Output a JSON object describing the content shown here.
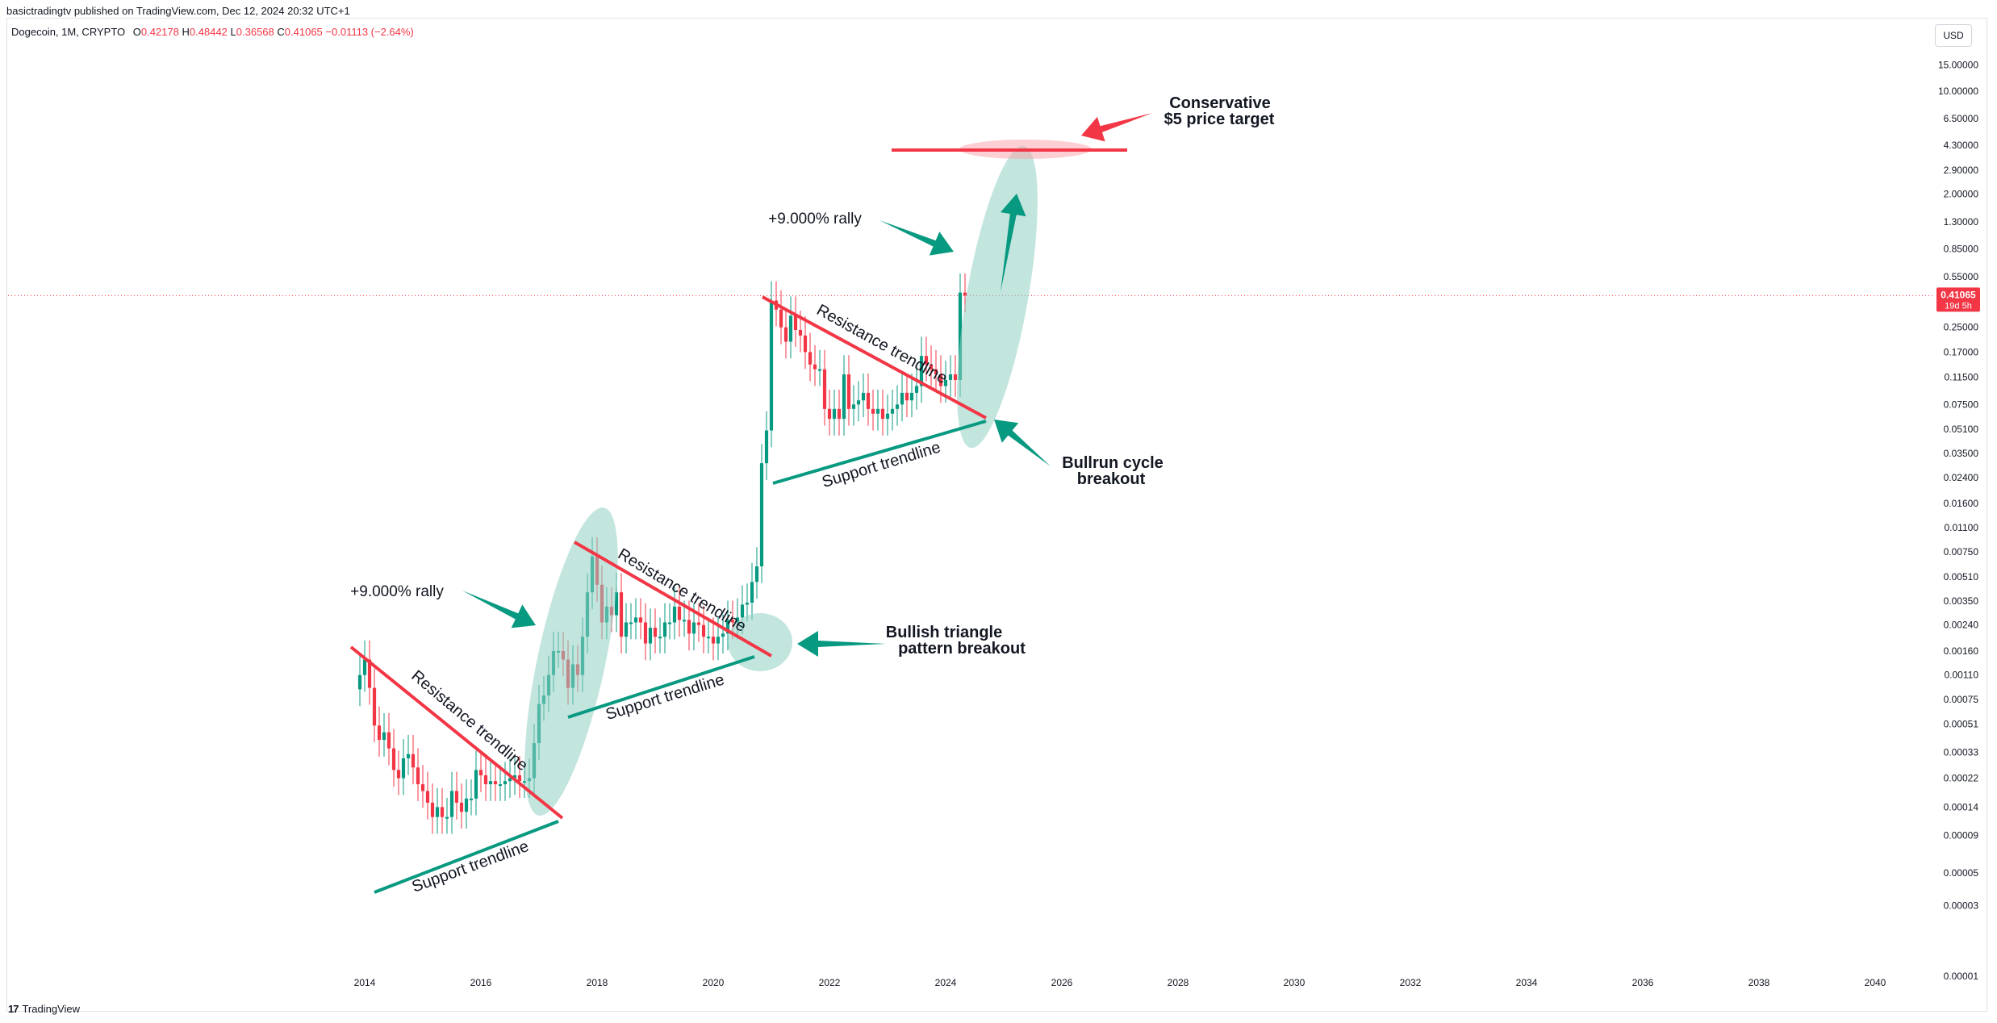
{
  "publisher": "basictradingtv published on TradingView.com, Dec 12, 2024 20:32 UTC+1",
  "symbol": {
    "name": "Dogecoin, 1M, CRYPTO",
    "o_label": "O",
    "o": "0.42178",
    "h_label": "H",
    "h": "0.48442",
    "l_label": "L",
    "l": "0.36568",
    "c_label": "C",
    "c": "0.41065",
    "change": "−0.01113 (−2.64%)"
  },
  "currency": "USD",
  "footer": {
    "brand": "TradingView"
  },
  "colors": {
    "up": "#089981",
    "down": "#f23645",
    "support": "#089981",
    "resistance": "#f23645",
    "highlight": "#8fcfc2",
    "target": "#f23645"
  },
  "chart_data": {
    "type": "candlestick",
    "title": "",
    "xlabel": "",
    "ylabel": "",
    "y_scale": "log",
    "ylim": [
      1e-05,
      25
    ],
    "x_range": [
      "2013-01",
      "2040-12"
    ],
    "x_ticks": [
      "2014",
      "2016",
      "2018",
      "2020",
      "2022",
      "2024",
      "2026",
      "2028",
      "2030",
      "2032",
      "2034",
      "2036",
      "2038",
      "2040"
    ],
    "y_ticks": [
      "15.00000",
      "10.00000",
      "6.50000",
      "4.30000",
      "2.90000",
      "2.00000",
      "1.30000",
      "0.85000",
      "0.55000",
      "0.25000",
      "0.17000",
      "0.11500",
      "0.07500",
      "0.05100",
      "0.03500",
      "0.02400",
      "0.01600",
      "0.01100",
      "0.00750",
      "0.00510",
      "0.00350",
      "0.00240",
      "0.00160",
      "0.00110",
      "0.00075",
      "0.00051",
      "0.00033",
      "0.00022",
      "0.00014",
      "0.00009",
      "0.00005",
      "0.00003",
      "0.00001"
    ],
    "last_price": {
      "value": "0.41065",
      "countdown": "19d 5h"
    },
    "candles_monthly_close": [
      0.0011,
      0.0014,
      0.0009,
      0.0005,
      0.0004,
      0.00045,
      0.00035,
      0.00025,
      0.00022,
      0.0003,
      0.00032,
      0.00026,
      0.0002,
      0.00018,
      0.00015,
      0.00012,
      0.00014,
      0.00012,
      0.00012,
      0.00018,
      0.00015,
      0.00013,
      0.00016,
      0.00016,
      0.00025,
      0.00023,
      0.0002,
      0.00021,
      0.0002,
      0.0002,
      0.00021,
      0.00022,
      0.00023,
      0.00021,
      0.00021,
      0.00022,
      0.00038,
      0.0007,
      0.0008,
      0.0011,
      0.0016,
      0.0016,
      0.0014,
      0.0009,
      0.0013,
      0.0011,
      0.002,
      0.004,
      0.007,
      0.0045,
      0.0025,
      0.0032,
      0.0028,
      0.004,
      0.002,
      0.0025,
      0.0025,
      0.0027,
      0.0025,
      0.0018,
      0.0023,
      0.002,
      0.002,
      0.0025,
      0.0025,
      0.0032,
      0.0026,
      0.0026,
      0.0021,
      0.0025,
      0.0024,
      0.002,
      0.002,
      0.0018,
      0.002,
      0.0021,
      0.0026,
      0.0025,
      0.0027,
      0.0033,
      0.0034,
      0.0047,
      0.006,
      0.03,
      0.05,
      0.38,
      0.33,
      0.25,
      0.2,
      0.3,
      0.24,
      0.22,
      0.17,
      0.14,
      0.13,
      0.13,
      0.07,
      0.06,
      0.07,
      0.06,
      0.12,
      0.07,
      0.075,
      0.08,
      0.09,
      0.07,
      0.065,
      0.07,
      0.06,
      0.065,
      0.07,
      0.075,
      0.09,
      0.08,
      0.09,
      0.1,
      0.16,
      0.14,
      0.13,
      0.12,
      0.1,
      0.11,
      0.12,
      0.11,
      0.43,
      0.41065
    ],
    "annotations": {
      "trendline_labels": [
        "Resistance trendline",
        "Support trendline",
        "Resistance trendline",
        "Support trendline",
        "Resistance trendline",
        "Support trendline"
      ],
      "rally_1": "+9.000% rally",
      "rally_2": "+9.000% rally",
      "triangle_breakout": [
        "Bullish triangle",
        "pattern breakout"
      ],
      "bullrun": [
        "Bullrun cycle",
        "breakout"
      ],
      "target": [
        "Conservative",
        "$5 price target"
      ],
      "target_value": 5
    }
  }
}
